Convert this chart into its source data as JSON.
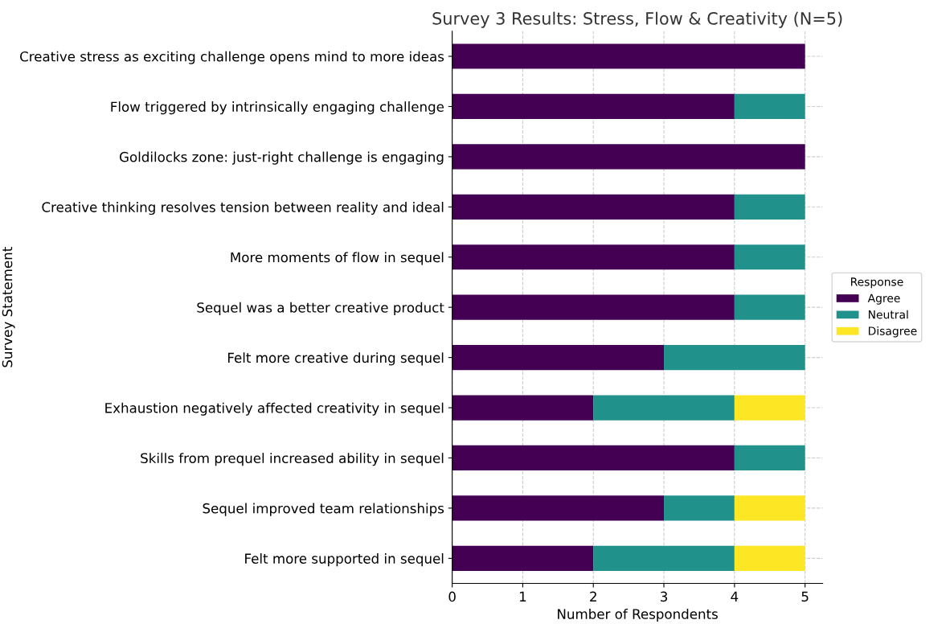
{
  "chart_data": {
    "type": "bar",
    "orientation": "horizontal",
    "stacked": true,
    "title": "Survey 3 Results: Stress, Flow & Creativity (N=5)",
    "xlabel": "Number of Respondents",
    "ylabel": "Survey Statement",
    "legend_title": "Response",
    "categories": [
      "Creative stress as exciting challenge opens mind to more ideas",
      "Flow triggered by intrinsically engaging challenge",
      "Goldilocks zone: just-right challenge is engaging",
      "Creative thinking resolves tension between reality and ideal",
      "More moments of flow in sequel",
      "Sequel was a better creative product",
      "Felt more creative during sequel",
      "Exhaustion negatively affected creativity in sequel",
      "Skills from prequel increased ability in sequel",
      "Sequel improved team relationships",
      "Felt more supported in sequel"
    ],
    "series": [
      {
        "name": "Agree",
        "color": "#440154",
        "values": [
          5,
          4,
          5,
          4,
          4,
          4,
          3,
          2,
          4,
          3,
          2
        ]
      },
      {
        "name": "Neutral",
        "color": "#21918c",
        "values": [
          0,
          1,
          0,
          1,
          1,
          1,
          2,
          2,
          1,
          1,
          2
        ]
      },
      {
        "name": "Disagree",
        "color": "#fde725",
        "values": [
          0,
          0,
          0,
          0,
          0,
          0,
          0,
          1,
          0,
          1,
          1
        ]
      }
    ],
    "xlim": [
      0,
      5.25
    ],
    "xticks": [
      0,
      1,
      2,
      3,
      4,
      5
    ],
    "grid": true,
    "legend": "right"
  }
}
